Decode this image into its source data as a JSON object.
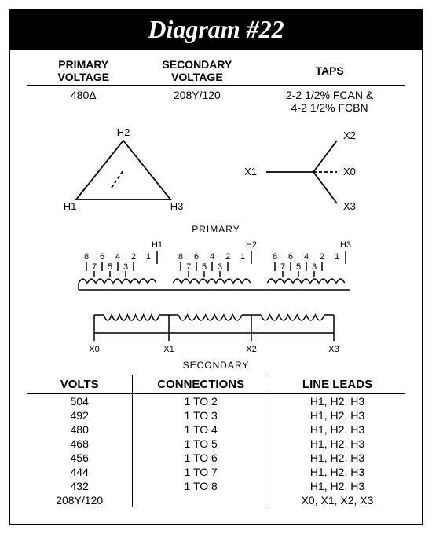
{
  "title": "Diagram #22",
  "header": {
    "col1_l1": "PRIMARY",
    "col1_l2": "VOLTAGE",
    "col2_l1": "SECONDARY",
    "col2_l2": "VOLTAGE",
    "col3": "TAPS",
    "primary_voltage": "480Δ",
    "secondary_voltage": "208Y/120",
    "taps_l1": "2-2 1/2% FCAN &",
    "taps_l2": "4-2 1/2% FCBN"
  },
  "delta": {
    "type": "delta",
    "labels": {
      "top": "H2",
      "left": "H1",
      "right": "H3"
    },
    "stroke": "#000000",
    "stroke_width": 1.8,
    "font_size": 13
  },
  "wye": {
    "type": "wye",
    "labels": {
      "top": "X2",
      "left": "X1",
      "right": "X0",
      "bottom": "X3"
    },
    "stroke": "#000000",
    "stroke_width": 1.8,
    "font_size": 13
  },
  "winding": {
    "primary_label": "PRIMARY",
    "secondary_label": "SECONDARY",
    "primary_terminals": [
      "H1",
      "H2",
      "H3"
    ],
    "tap_numbers_top": [
      "8",
      "6",
      "4",
      "2"
    ],
    "tap_numbers_bot": [
      "7",
      "5",
      "3"
    ],
    "tap_one": "1",
    "secondary_terminals": [
      "X0",
      "X1",
      "X2",
      "X3"
    ],
    "stroke": "#000000",
    "stroke_width": 1.5,
    "font_size": 11
  },
  "conn_table": {
    "headers": [
      "VOLTS",
      "CONNECTIONS",
      "LINE LEADS"
    ],
    "rows": [
      [
        "504",
        "1 TO 2",
        "H1, H2, H3"
      ],
      [
        "492",
        "1 TO 3",
        "H1, H2, H3"
      ],
      [
        "480",
        "1 TO 4",
        "H1, H2, H3"
      ],
      [
        "468",
        "1 TO 5",
        "H1, H2, H3"
      ],
      [
        "456",
        "1 TO 6",
        "H1, H2, H3"
      ],
      [
        "444",
        "1 TO 7",
        "H1, H2, H3"
      ],
      [
        "432",
        "1 TO 8",
        "H1, H2, H3"
      ],
      [
        "208Y/120",
        "",
        "X0, X1, X2, X3"
      ]
    ]
  },
  "colors": {
    "bg": "#ffffff",
    "fg": "#000000",
    "title_bg": "#000000",
    "title_fg": "#ffffff"
  }
}
